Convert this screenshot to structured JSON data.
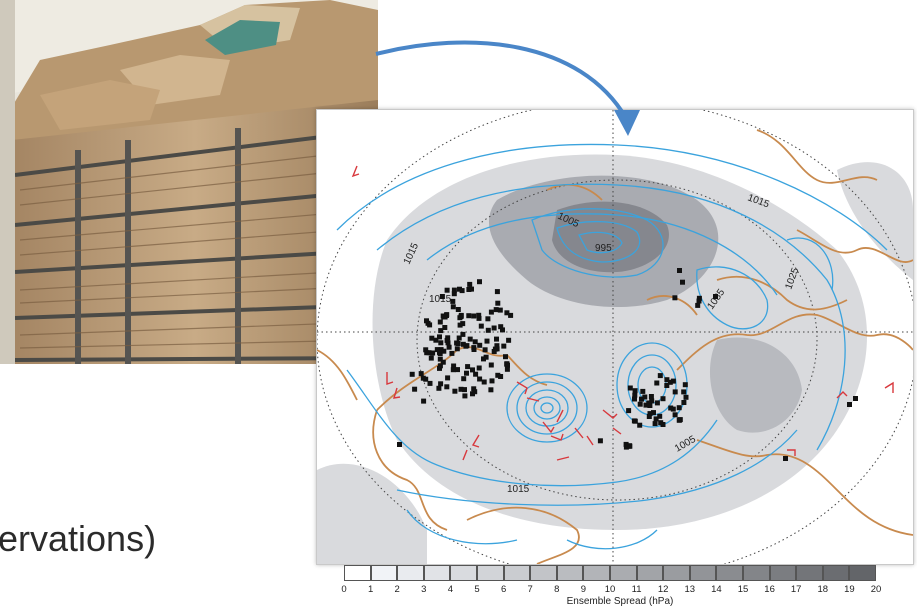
{
  "caption": "ervations)",
  "map": {
    "contour_labels": [
      "1005",
      "995",
      "1015",
      "1015",
      "1035",
      "1025",
      "1015",
      "1005",
      "1015"
    ]
  },
  "colorbar": {
    "ticks": [
      "0",
      "1",
      "2",
      "3",
      "4",
      "5",
      "6",
      "7",
      "8",
      "9",
      "10",
      "11",
      "12",
      "13",
      "14",
      "15",
      "16",
      "17",
      "18",
      "19",
      "20"
    ],
    "label": "Ensemble Spread (hPa)"
  },
  "colors": {
    "contour": "#3ba3dd",
    "coast": "#c88a4e",
    "spread_shade": "#7f8189",
    "station": "#111111",
    "wind_barb": "#d8383d",
    "arrow": "#4a86c8"
  }
}
